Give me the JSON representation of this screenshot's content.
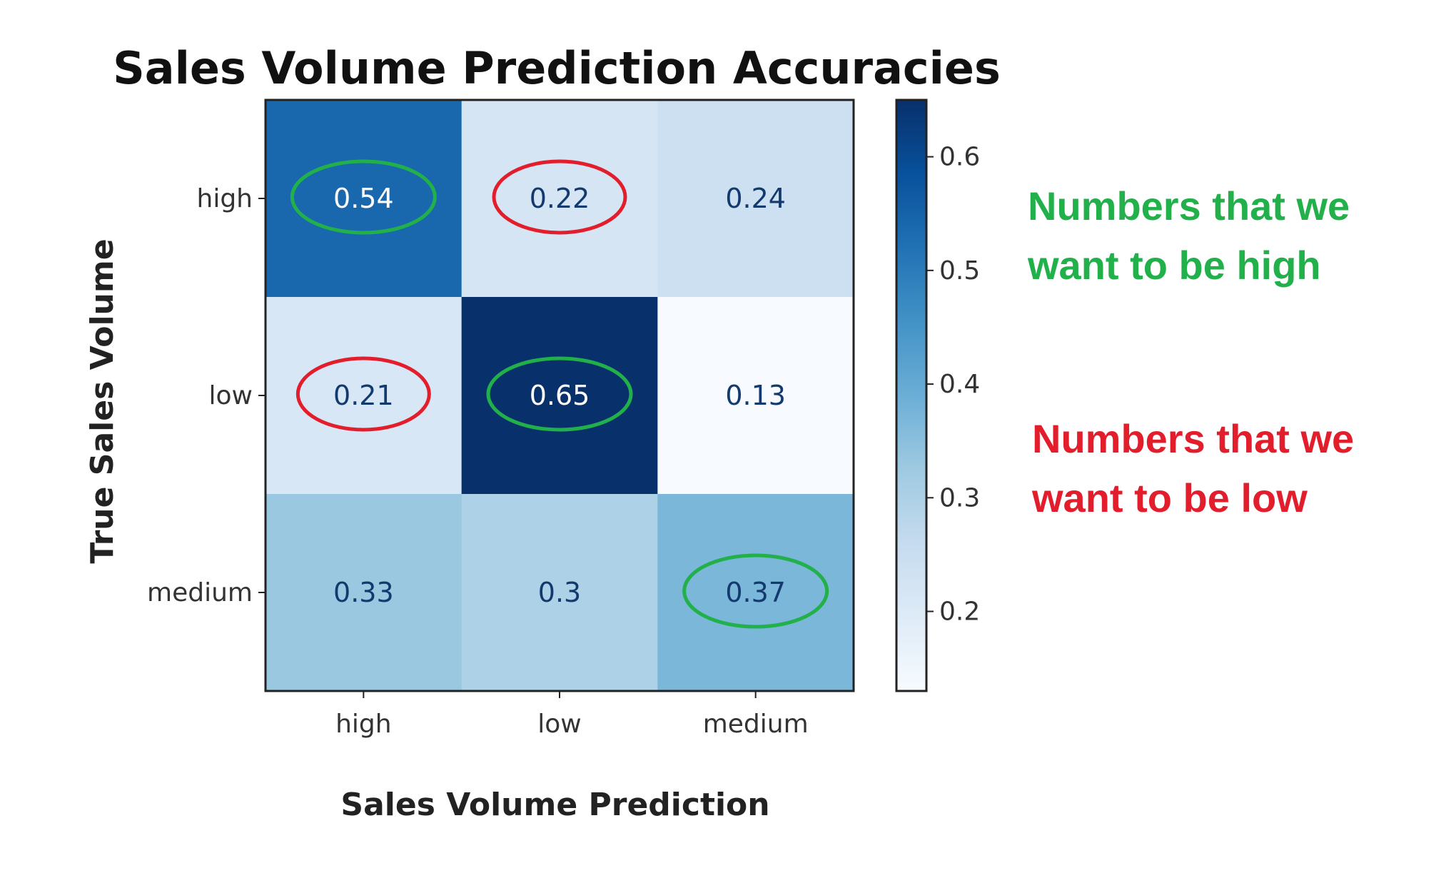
{
  "chart_data": {
    "type": "heatmap",
    "title": "Sales Volume Prediction Accuracies",
    "xlabel": "Sales Volume Prediction",
    "ylabel": "True Sales Volume",
    "x_categories": [
      "high",
      "low",
      "medium"
    ],
    "y_categories": [
      "high",
      "low",
      "medium"
    ],
    "values": [
      [
        0.54,
        0.22,
        0.24
      ],
      [
        0.21,
        0.65,
        0.13
      ],
      [
        0.33,
        0.3,
        0.37
      ]
    ],
    "cell_labels": [
      [
        "0.54",
        "0.22",
        "0.24"
      ],
      [
        "0.21",
        "0.65",
        "0.13"
      ],
      [
        "0.33",
        "0.3",
        "0.37"
      ]
    ],
    "colormap": "Blues",
    "colorbar": {
      "range": [
        0.13,
        0.65
      ],
      "ticks": [
        0.2,
        0.3,
        0.4,
        0.5,
        0.6
      ],
      "tick_labels": [
        "0.2",
        "0.3",
        "0.4",
        "0.5",
        "0.6"
      ]
    },
    "highlights": [
      {
        "row": 0,
        "col": 0,
        "group": "high"
      },
      {
        "row": 1,
        "col": 1,
        "group": "high"
      },
      {
        "row": 2,
        "col": 2,
        "group": "high"
      },
      {
        "row": 0,
        "col": 1,
        "group": "low"
      },
      {
        "row": 1,
        "col": 0,
        "group": "low"
      }
    ]
  },
  "annotations": {
    "high_note": [
      "Numbers that we",
      "want to be high"
    ],
    "low_note": [
      "Numbers that we",
      "want to be low"
    ]
  },
  "colors": {
    "high_highlight": "#22b04b",
    "low_highlight": "#e31e2c",
    "frame": "#222222",
    "colormap_stops": [
      "#f7fbff",
      "#deebf7",
      "#c6dbef",
      "#9ecae1",
      "#6baed6",
      "#4292c6",
      "#2171b5",
      "#08519c",
      "#08306b"
    ]
  }
}
